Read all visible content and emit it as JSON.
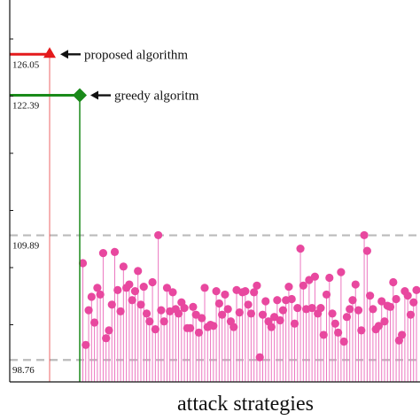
{
  "chart_data": {
    "type": "scatter",
    "title": "",
    "xlabel": "attack strategies",
    "ylabel": "",
    "ylim": [
      96.8,
      130.9
    ],
    "y_tick_labels": [
      {
        "value": 126.05,
        "text": "126.05"
      },
      {
        "value": 122.39,
        "text": "122.39"
      },
      {
        "value": 109.89,
        "text": "109.89"
      },
      {
        "value": 98.76,
        "text": "98.76"
      }
    ],
    "reference_lines": [
      {
        "value": 109.89,
        "style": "dashed",
        "color": "#bbbbbb"
      },
      {
        "value": 98.76,
        "style": "dashed",
        "color": "#bbbbbb"
      }
    ],
    "annotations": [
      {
        "name": "proposed algorithm",
        "text": "proposed algorithm",
        "value": 126.05,
        "marker": "triangle",
        "color": "#e41a1c"
      },
      {
        "name": "greedy algoritm",
        "text": "greedy algoritm",
        "value": 122.39,
        "marker": "diamond",
        "color": "#1a8a1a"
      }
    ],
    "stem_color": "#ec77c0",
    "point_color": "#e8489f",
    "values": [
      107.4,
      100.1,
      103.2,
      104.4,
      102.1,
      105.2,
      104.6,
      108.3,
      100.7,
      101.4,
      103.7,
      108.4,
      105.0,
      103.1,
      107.1,
      105.2,
      105.5,
      104.1,
      104.9,
      106.7,
      103.7,
      105.3,
      102.9,
      102.2,
      105.7,
      101.5,
      109.9,
      103.2,
      102.2,
      105.2,
      103.1,
      104.8,
      103.3,
      102.9,
      103.9,
      103.4,
      101.6,
      101.6,
      103.5,
      102.8,
      101.2,
      102.5,
      105.2,
      101.7,
      101.9,
      101.8,
      104.9,
      103.8,
      102.8,
      104.6,
      103.3,
      102.2,
      101.7,
      105.0,
      103.0,
      104.8,
      104.9,
      103.7,
      102.9,
      104.8,
      105.4,
      99.0,
      102.8,
      104.0,
      102.2,
      101.7,
      102.6,
      104.1,
      102.3,
      103.2,
      104.1,
      105.3,
      104.2,
      102.0,
      103.4,
      108.7,
      105.4,
      103.3,
      105.9,
      103.4,
      106.2,
      102.9,
      103.4,
      101.0,
      104.6,
      106.1,
      102.9,
      102.0,
      101.2,
      106.6,
      100.4,
      102.6,
      103.3,
      104.1,
      105.5,
      103.2,
      101.4,
      109.9,
      108.5,
      104.5,
      103.3,
      101.5,
      101.8,
      104.0,
      102.2,
      103.6,
      103.5,
      105.7,
      104.2,
      100.5,
      101.0,
      104.9,
      104.5,
      102.8,
      103.9,
      105.0
    ]
  }
}
